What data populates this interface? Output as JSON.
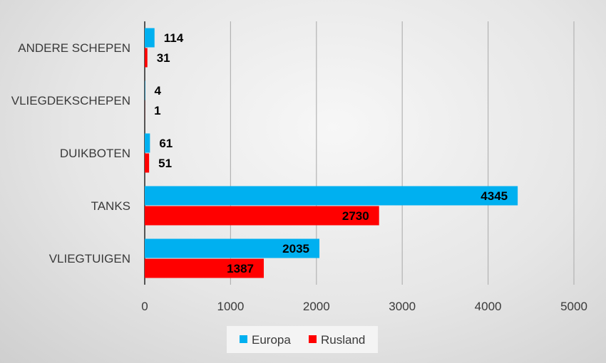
{
  "chart_data": {
    "type": "bar",
    "orientation": "horizontal",
    "categories": [
      "ANDERE SCHEPEN",
      "VLIEGDEKSCHEPEN",
      "DUIKBOTEN",
      "TANKS",
      "VLIEGTUIGEN"
    ],
    "series": [
      {
        "name": "Europa",
        "color": "#00b0f0",
        "values": [
          114,
          4,
          61,
          4345,
          2035
        ]
      },
      {
        "name": "Rusland",
        "color": "#ff0000",
        "values": [
          31,
          1,
          51,
          2730,
          1387
        ]
      }
    ],
    "xlim": [
      0,
      5000
    ],
    "xticks": [
      0,
      1000,
      2000,
      3000,
      4000,
      5000
    ],
    "grid": true,
    "legend_position": "bottom"
  }
}
